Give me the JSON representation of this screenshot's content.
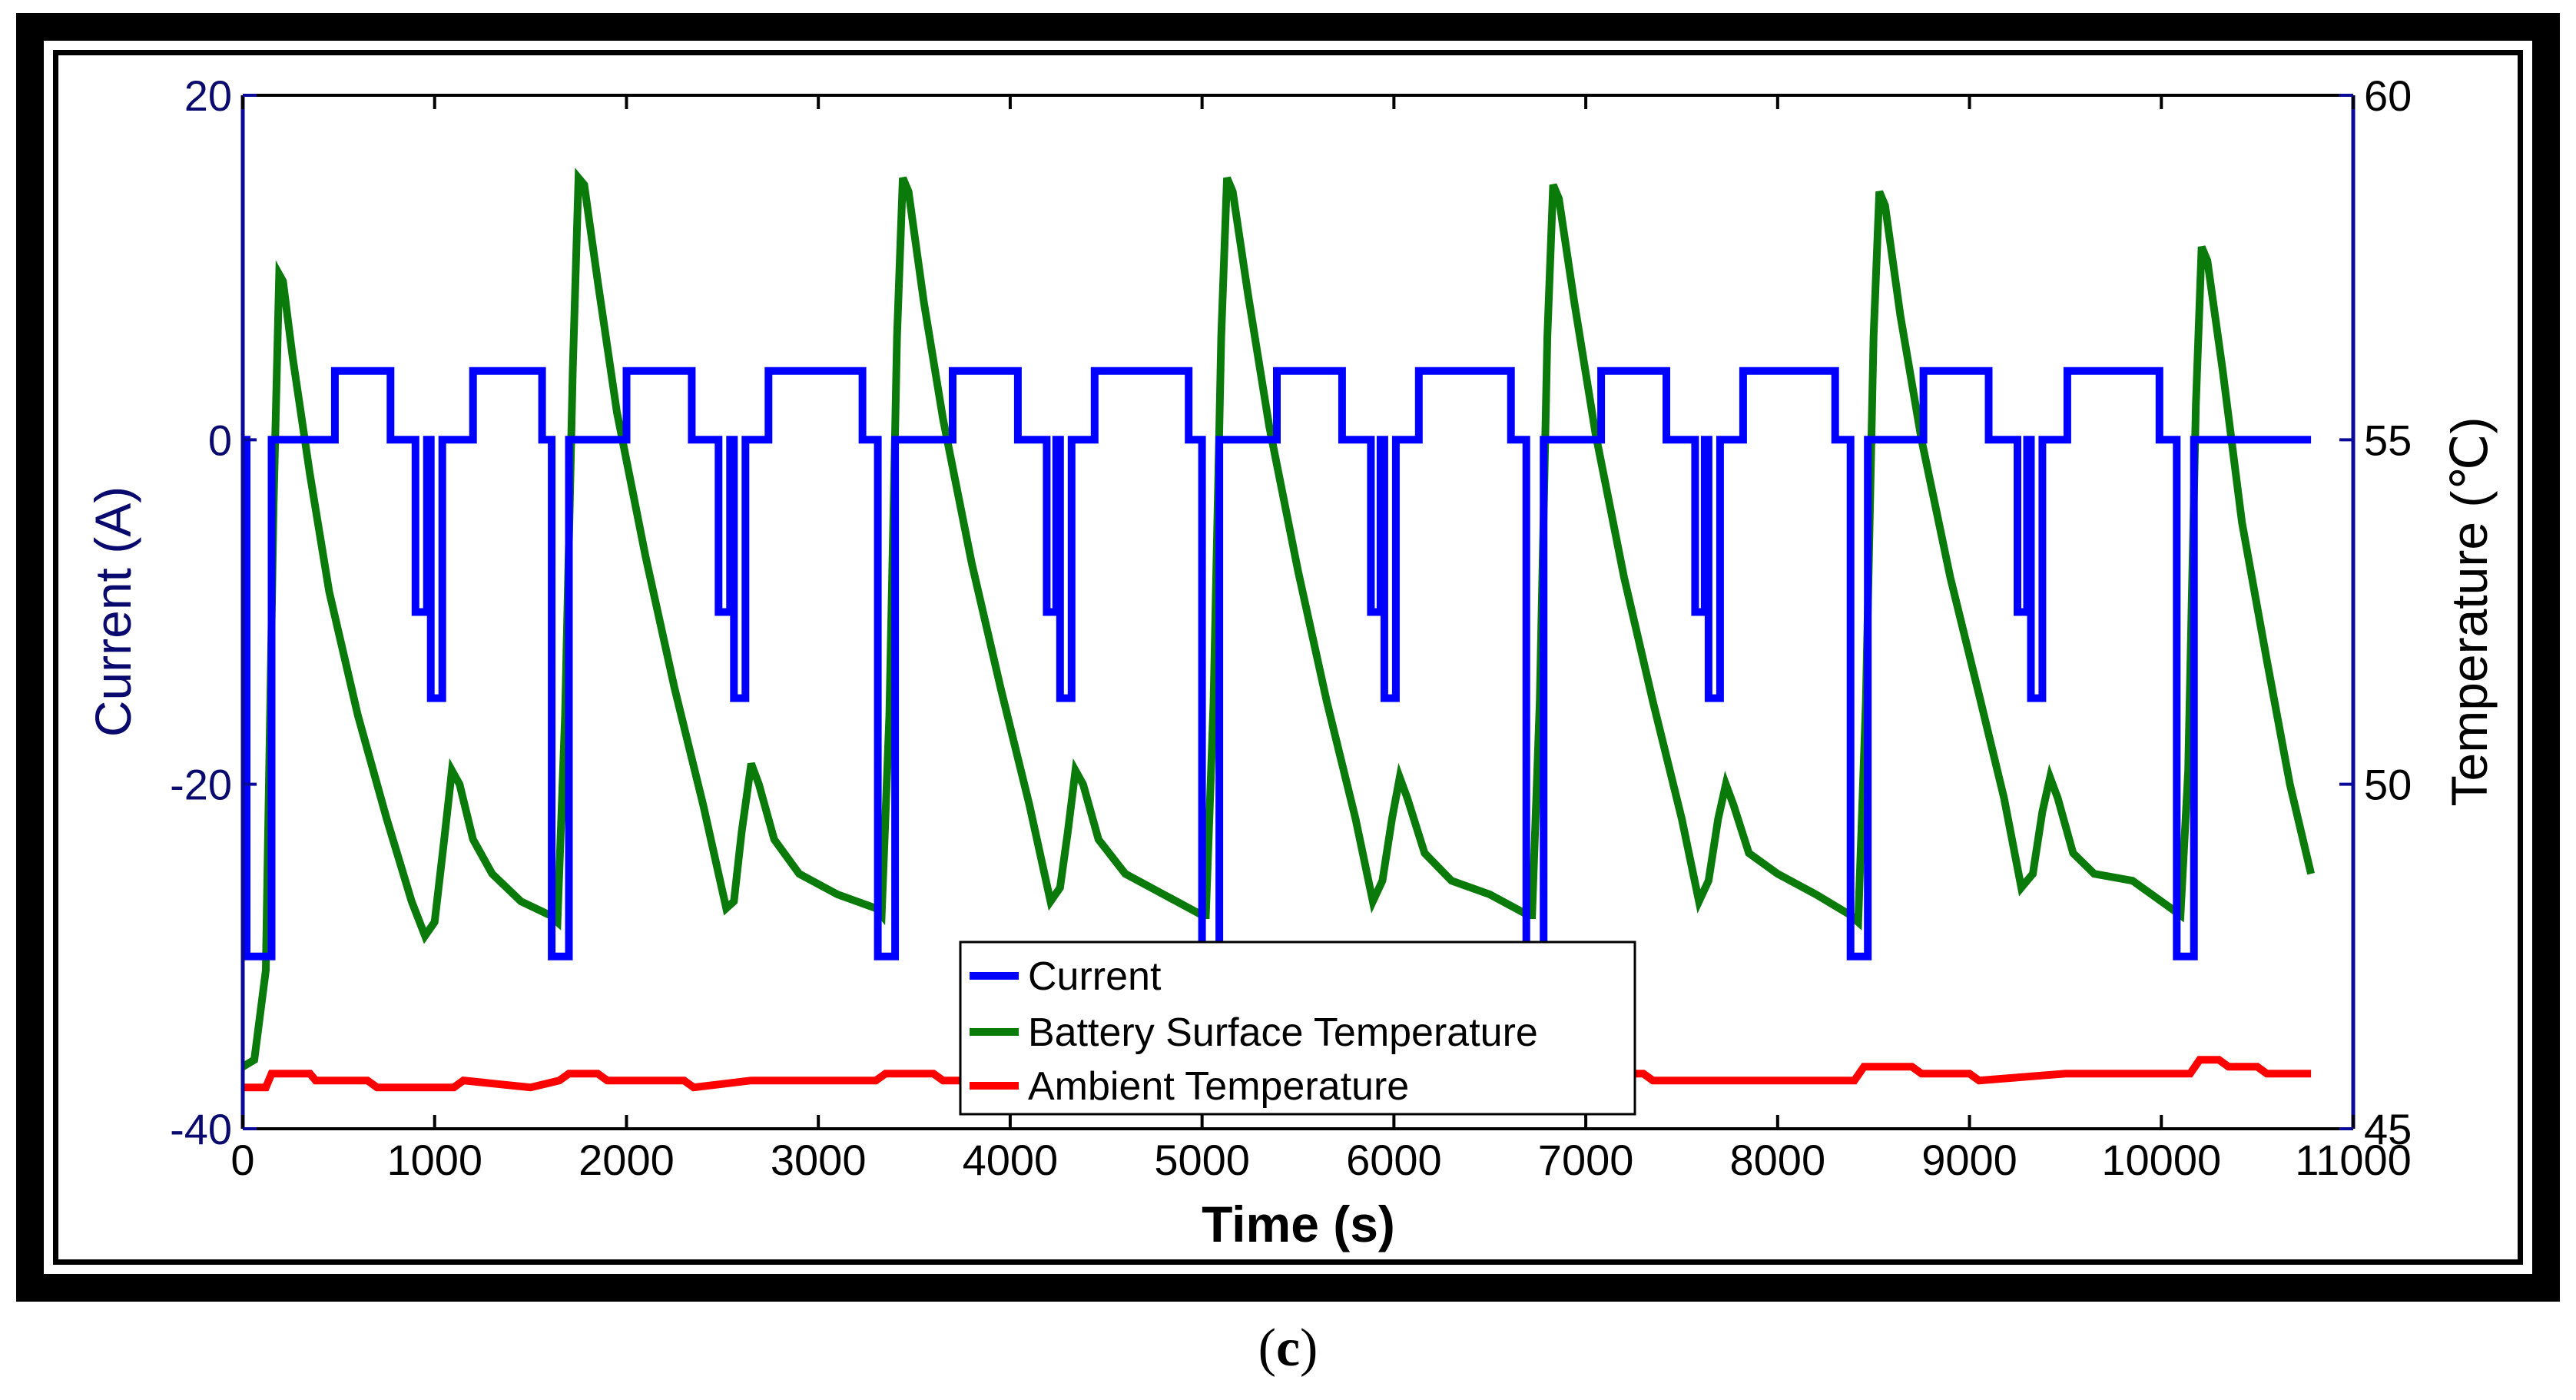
{
  "caption": {
    "open": "(",
    "letter": "c",
    "close": ")"
  },
  "chart_data": {
    "type": "line",
    "xlabel": "Time (s)",
    "ylabel_left": "Current (A)",
    "ylabel_right": "Temperature (℃)",
    "xlim": [
      0,
      11000
    ],
    "ylim_left": [
      -40,
      20
    ],
    "ylim_right": [
      45,
      60
    ],
    "xticks": [
      0,
      1000,
      2000,
      3000,
      4000,
      5000,
      6000,
      7000,
      8000,
      9000,
      10000,
      11000
    ],
    "yticks_left": [
      -40,
      -20,
      0,
      20
    ],
    "yticks_right": [
      45,
      50,
      55,
      60
    ],
    "tick_labels_left": [
      "-40",
      "-20",
      "0",
      "20"
    ],
    "tick_labels_right": [
      "45",
      "50",
      "55",
      "60"
    ],
    "tick_labels_x": [
      "0",
      "1000",
      "2000",
      "3000",
      "4000",
      "5000",
      "6000",
      "7000",
      "8000",
      "9000",
      "10000",
      "11000"
    ],
    "legend_position": "bottom-center",
    "series": [
      {
        "name": "Current",
        "axis": "left",
        "color": "#0000ff",
        "points": [
          [
            0,
            0
          ],
          [
            20,
            0
          ],
          [
            20,
            -30
          ],
          [
            150,
            -30
          ],
          [
            150,
            0
          ],
          [
            480,
            0
          ],
          [
            480,
            4
          ],
          [
            770,
            4
          ],
          [
            770,
            0
          ],
          [
            900,
            0
          ],
          [
            900,
            -10
          ],
          [
            960,
            -10
          ],
          [
            960,
            0
          ],
          [
            980,
            0
          ],
          [
            980,
            -15
          ],
          [
            1040,
            -15
          ],
          [
            1040,
            0
          ],
          [
            1200,
            0
          ],
          [
            1200,
            4
          ],
          [
            1560,
            4
          ],
          [
            1560,
            0
          ],
          [
            1610,
            0
          ],
          [
            1610,
            -30
          ],
          [
            1700,
            -30
          ],
          [
            1700,
            0
          ],
          [
            2000,
            0
          ],
          [
            2000,
            4
          ],
          [
            2340,
            4
          ],
          [
            2340,
            0
          ],
          [
            2480,
            0
          ],
          [
            2480,
            -10
          ],
          [
            2540,
            -10
          ],
          [
            2540,
            0
          ],
          [
            2560,
            0
          ],
          [
            2560,
            -15
          ],
          [
            2620,
            -15
          ],
          [
            2620,
            0
          ],
          [
            2740,
            0
          ],
          [
            2740,
            4
          ],
          [
            3230,
            4
          ],
          [
            3230,
            0
          ],
          [
            3310,
            0
          ],
          [
            3310,
            -30
          ],
          [
            3400,
            -30
          ],
          [
            3400,
            0
          ],
          [
            3700,
            0
          ],
          [
            3700,
            4
          ],
          [
            4040,
            4
          ],
          [
            4040,
            0
          ],
          [
            4190,
            0
          ],
          [
            4190,
            -10
          ],
          [
            4240,
            -10
          ],
          [
            4240,
            0
          ],
          [
            4260,
            0
          ],
          [
            4260,
            -15
          ],
          [
            4320,
            -15
          ],
          [
            4320,
            0
          ],
          [
            4440,
            0
          ],
          [
            4440,
            4
          ],
          [
            4930,
            4
          ],
          [
            4930,
            0
          ],
          [
            5000,
            0
          ],
          [
            5000,
            -30
          ],
          [
            5090,
            -30
          ],
          [
            5090,
            0
          ],
          [
            5390,
            0
          ],
          [
            5390,
            4
          ],
          [
            5730,
            4
          ],
          [
            5730,
            0
          ],
          [
            5880,
            0
          ],
          [
            5880,
            -10
          ],
          [
            5930,
            -10
          ],
          [
            5930,
            0
          ],
          [
            5950,
            0
          ],
          [
            5950,
            -15
          ],
          [
            6010,
            -15
          ],
          [
            6010,
            0
          ],
          [
            6130,
            0
          ],
          [
            6130,
            4
          ],
          [
            6610,
            4
          ],
          [
            6610,
            0
          ],
          [
            6690,
            0
          ],
          [
            6690,
            -30
          ],
          [
            6780,
            -30
          ],
          [
            6780,
            0
          ],
          [
            7080,
            0
          ],
          [
            7080,
            4
          ],
          [
            7420,
            4
          ],
          [
            7420,
            0
          ],
          [
            7570,
            0
          ],
          [
            7570,
            -10
          ],
          [
            7620,
            -10
          ],
          [
            7620,
            0
          ],
          [
            7640,
            0
          ],
          [
            7640,
            -15
          ],
          [
            7700,
            -15
          ],
          [
            7700,
            0
          ],
          [
            7820,
            0
          ],
          [
            7820,
            4
          ],
          [
            8300,
            4
          ],
          [
            8300,
            0
          ],
          [
            8380,
            0
          ],
          [
            8380,
            -30
          ],
          [
            8470,
            -30
          ],
          [
            8470,
            0
          ],
          [
            8760,
            0
          ],
          [
            8760,
            4
          ],
          [
            9100,
            4
          ],
          [
            9100,
            0
          ],
          [
            9250,
            0
          ],
          [
            9250,
            -10
          ],
          [
            9300,
            -10
          ],
          [
            9300,
            0
          ],
          [
            9320,
            0
          ],
          [
            9320,
            -15
          ],
          [
            9380,
            -15
          ],
          [
            9380,
            0
          ],
          [
            9510,
            0
          ],
          [
            9510,
            4
          ],
          [
            9990,
            4
          ],
          [
            9990,
            0
          ],
          [
            10080,
            0
          ],
          [
            10080,
            -30
          ],
          [
            10170,
            -30
          ],
          [
            10170,
            0
          ],
          [
            10780,
            0
          ]
        ]
      },
      {
        "name": "Battery Surface Temperature",
        "axis": "right",
        "color": "#0a7a0a",
        "points": [
          [
            0,
            45.9
          ],
          [
            60,
            46.0
          ],
          [
            120,
            47.3
          ],
          [
            160,
            54.0
          ],
          [
            190,
            57.4
          ],
          [
            210,
            57.3
          ],
          [
            260,
            56.2
          ],
          [
            350,
            54.5
          ],
          [
            450,
            52.8
          ],
          [
            600,
            51.0
          ],
          [
            750,
            49.5
          ],
          [
            880,
            48.3
          ],
          [
            950,
            47.8
          ],
          [
            1000,
            48.0
          ],
          [
            1050,
            49.2
          ],
          [
            1090,
            50.2
          ],
          [
            1130,
            50.0
          ],
          [
            1200,
            49.2
          ],
          [
            1300,
            48.7
          ],
          [
            1450,
            48.3
          ],
          [
            1600,
            48.1
          ],
          [
            1640,
            48.0
          ],
          [
            1680,
            51.0
          ],
          [
            1720,
            56.0
          ],
          [
            1750,
            58.8
          ],
          [
            1780,
            58.7
          ],
          [
            1850,
            57.3
          ],
          [
            1950,
            55.4
          ],
          [
            2100,
            53.3
          ],
          [
            2250,
            51.4
          ],
          [
            2400,
            49.7
          ],
          [
            2520,
            48.2
          ],
          [
            2560,
            48.3
          ],
          [
            2600,
            49.3
          ],
          [
            2650,
            50.3
          ],
          [
            2690,
            50.0
          ],
          [
            2770,
            49.2
          ],
          [
            2900,
            48.7
          ],
          [
            3100,
            48.4
          ],
          [
            3300,
            48.2
          ],
          [
            3330,
            48.1
          ],
          [
            3370,
            51.0
          ],
          [
            3410,
            56.5
          ],
          [
            3440,
            58.8
          ],
          [
            3470,
            58.6
          ],
          [
            3550,
            57.0
          ],
          [
            3650,
            55.3
          ],
          [
            3800,
            53.2
          ],
          [
            3950,
            51.4
          ],
          [
            4100,
            49.7
          ],
          [
            4210,
            48.3
          ],
          [
            4260,
            48.5
          ],
          [
            4300,
            49.3
          ],
          [
            4340,
            50.2
          ],
          [
            4380,
            50.0
          ],
          [
            4460,
            49.2
          ],
          [
            4600,
            48.7
          ],
          [
            4800,
            48.4
          ],
          [
            5000,
            48.1
          ],
          [
            5020,
            48.1
          ],
          [
            5060,
            51.2
          ],
          [
            5100,
            56.5
          ],
          [
            5130,
            58.8
          ],
          [
            5160,
            58.6
          ],
          [
            5240,
            57.1
          ],
          [
            5350,
            55.2
          ],
          [
            5500,
            53.1
          ],
          [
            5650,
            51.2
          ],
          [
            5800,
            49.5
          ],
          [
            5890,
            48.3
          ],
          [
            5940,
            48.6
          ],
          [
            5990,
            49.5
          ],
          [
            6030,
            50.1
          ],
          [
            6070,
            49.8
          ],
          [
            6160,
            49.0
          ],
          [
            6300,
            48.6
          ],
          [
            6500,
            48.4
          ],
          [
            6700,
            48.1
          ],
          [
            6720,
            48.1
          ],
          [
            6760,
            51.2
          ],
          [
            6800,
            56.5
          ],
          [
            6830,
            58.7
          ],
          [
            6860,
            58.5
          ],
          [
            6940,
            57.0
          ],
          [
            7050,
            55.1
          ],
          [
            7200,
            53.0
          ],
          [
            7350,
            51.2
          ],
          [
            7500,
            49.5
          ],
          [
            7590,
            48.3
          ],
          [
            7640,
            48.6
          ],
          [
            7690,
            49.5
          ],
          [
            7730,
            50.0
          ],
          [
            7770,
            49.7
          ],
          [
            7850,
            49.0
          ],
          [
            8000,
            48.7
          ],
          [
            8200,
            48.4
          ],
          [
            8380,
            48.1
          ],
          [
            8420,
            48.0
          ],
          [
            8460,
            51.2
          ],
          [
            8500,
            56.5
          ],
          [
            8530,
            58.6
          ],
          [
            8560,
            58.4
          ],
          [
            8640,
            56.8
          ],
          [
            8750,
            55.0
          ],
          [
            8900,
            53.0
          ],
          [
            9050,
            51.3
          ],
          [
            9180,
            49.8
          ],
          [
            9270,
            48.5
          ],
          [
            9330,
            48.7
          ],
          [
            9380,
            49.6
          ],
          [
            9420,
            50.1
          ],
          [
            9460,
            49.8
          ],
          [
            9540,
            49.0
          ],
          [
            9650,
            48.7
          ],
          [
            9850,
            48.6
          ],
          [
            10050,
            48.2
          ],
          [
            10100,
            48.1
          ],
          [
            10140,
            50.2
          ],
          [
            10180,
            55.5
          ],
          [
            10210,
            57.8
          ],
          [
            10240,
            57.6
          ],
          [
            10320,
            56.0
          ],
          [
            10420,
            53.8
          ],
          [
            10550,
            51.8
          ],
          [
            10670,
            50.0
          ],
          [
            10780,
            48.7
          ]
        ]
      },
      {
        "name": "Ambient Temperature",
        "axis": "right",
        "color": "#ff0000",
        "points": [
          [
            0,
            45.6
          ],
          [
            120,
            45.6
          ],
          [
            150,
            45.8
          ],
          [
            350,
            45.8
          ],
          [
            380,
            45.7
          ],
          [
            650,
            45.7
          ],
          [
            700,
            45.6
          ],
          [
            1100,
            45.6
          ],
          [
            1150,
            45.7
          ],
          [
            1500,
            45.6
          ],
          [
            1650,
            45.7
          ],
          [
            1700,
            45.8
          ],
          [
            1850,
            45.8
          ],
          [
            1900,
            45.7
          ],
          [
            2300,
            45.7
          ],
          [
            2350,
            45.6
          ],
          [
            2650,
            45.7
          ],
          [
            3000,
            45.7
          ],
          [
            3300,
            45.7
          ],
          [
            3350,
            45.8
          ],
          [
            3600,
            45.8
          ],
          [
            3650,
            45.7
          ],
          [
            4800,
            45.7
          ],
          [
            4850,
            45.8
          ],
          [
            5800,
            45.8
          ],
          [
            5850,
            45.7
          ],
          [
            6500,
            45.7
          ],
          [
            6550,
            45.8
          ],
          [
            7300,
            45.8
          ],
          [
            7350,
            45.7
          ],
          [
            8400,
            45.7
          ],
          [
            8450,
            45.9
          ],
          [
            8700,
            45.9
          ],
          [
            8750,
            45.8
          ],
          [
            9000,
            45.8
          ],
          [
            9050,
            45.7
          ],
          [
            9500,
            45.8
          ],
          [
            10150,
            45.8
          ],
          [
            10200,
            46.0
          ],
          [
            10300,
            46.0
          ],
          [
            10350,
            45.9
          ],
          [
            10500,
            45.9
          ],
          [
            10550,
            45.8
          ],
          [
            10780,
            45.8
          ]
        ]
      }
    ]
  }
}
